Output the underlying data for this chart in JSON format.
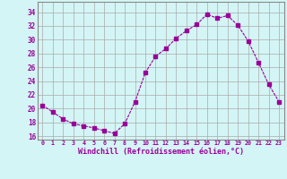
{
  "x": [
    0,
    1,
    2,
    3,
    4,
    5,
    6,
    7,
    8,
    9,
    10,
    11,
    12,
    13,
    14,
    15,
    16,
    17,
    18,
    19,
    20,
    21,
    22,
    23
  ],
  "y": [
    20.5,
    19.5,
    18.5,
    17.8,
    17.5,
    17.2,
    16.8,
    16.4,
    17.8,
    21.0,
    25.2,
    27.6,
    28.7,
    30.2,
    31.3,
    32.2,
    33.7,
    33.1,
    33.5,
    32.1,
    29.8,
    26.7,
    23.5,
    21.0
  ],
  "line_color": "#990099",
  "marker": "s",
  "marker_size": 2.5,
  "bg_color": "#d4f5f5",
  "grid_color": "#aaaaaa",
  "xlabel": "Windchill (Refroidissement éolien,°C)",
  "ylabel_ticks": [
    16,
    18,
    20,
    22,
    24,
    26,
    28,
    30,
    32,
    34
  ],
  "xtick_labels": [
    "0",
    "1",
    "2",
    "3",
    "4",
    "5",
    "6",
    "7",
    "8",
    "9",
    "10",
    "11",
    "12",
    "13",
    "14",
    "15",
    "16",
    "17",
    "18",
    "19",
    "20",
    "21",
    "22",
    "23"
  ],
  "ylim": [
    15.5,
    35.5
  ],
  "xlim": [
    -0.5,
    23.5
  ],
  "tick_color": "#990099",
  "label_color": "#990099",
  "spine_color": "#888888",
  "figsize": [
    3.2,
    2.0
  ],
  "dpi": 100
}
